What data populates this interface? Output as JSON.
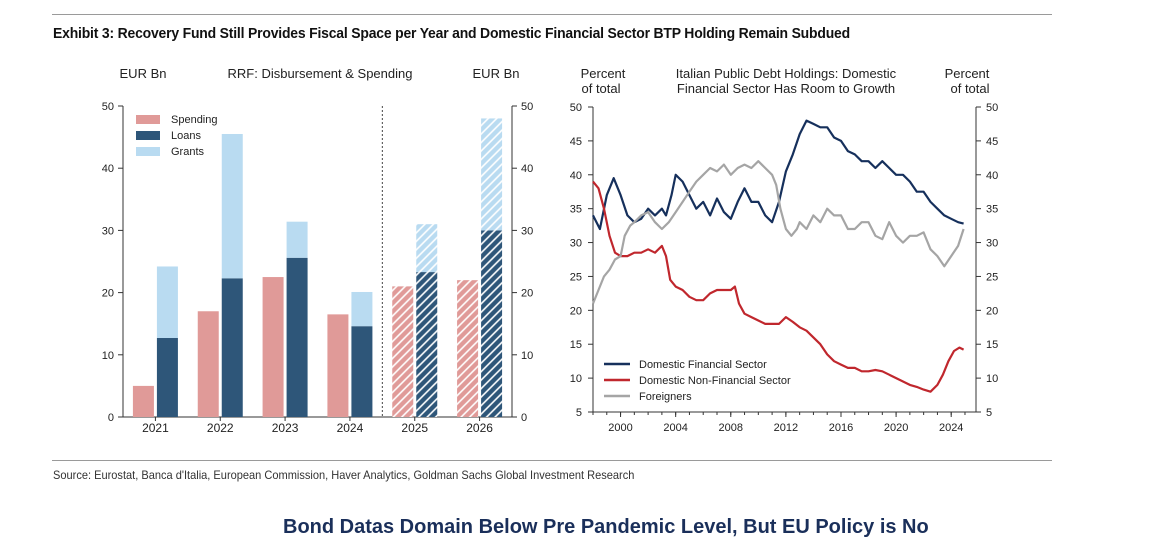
{
  "exhibit_title": "Exhibit 3: Recovery Fund Still Provides Fiscal Space per Year and Domestic Financial Sector BTP Holding Remain Subdued",
  "source": "Source: Eurostat, Banca d'Italia, European Commission, Haver Analytics, Goldman Sachs Global Investment Research",
  "footer_heading": "Bond Datas Domain Below Pre Pandemic Level, But EU Policy is No",
  "colors": {
    "spending": "#e09a98",
    "loans": "#2e5679",
    "grants": "#b9dbf1",
    "domestic_financial": "#16305c",
    "domestic_non_financial": "#c0272d",
    "foreigners": "#a5a5a5"
  },
  "chart_data": [
    {
      "type": "bar",
      "title": "RRF: Disbursement & Spending",
      "ylabel_left": "EUR Bn",
      "ylabel_right": "EUR Bn",
      "ylim": [
        0,
        50
      ],
      "yticks": [
        0,
        10,
        20,
        30,
        40,
        50
      ],
      "categories": [
        "2021",
        "2022",
        "2023",
        "2024",
        "2025",
        "2026"
      ],
      "projected_categories": [
        "2025",
        "2026"
      ],
      "legend": [
        "Spending",
        "Loans",
        "Grants"
      ],
      "series": [
        {
          "name": "Spending",
          "values": [
            5,
            17,
            22.5,
            16.5,
            21,
            22
          ]
        },
        {
          "name": "Loans",
          "values": [
            12.7,
            22.3,
            25.6,
            14.6,
            23.3,
            30
          ]
        },
        {
          "name": "Grants",
          "values": [
            11.5,
            23.2,
            5.8,
            5.5,
            7.7,
            18
          ]
        }
      ]
    },
    {
      "type": "line",
      "title_line1": "Italian Public Debt Holdings: Domestic",
      "title_line2": "Financial Sector Has Room to Growth",
      "ylabel_left_line1": "Percent",
      "ylabel_left_line2": "of total",
      "ylabel_right_line1": "Percent",
      "ylabel_right_line2": "of total",
      "ylim": [
        5,
        50
      ],
      "yticks": [
        5,
        10,
        15,
        20,
        25,
        30,
        35,
        40,
        45,
        50
      ],
      "xlim": [
        1998,
        2025.8
      ],
      "xticks": [
        2000,
        2004,
        2008,
        2012,
        2016,
        2020,
        2024
      ],
      "legend": [
        "Domestic Financial Sector",
        "Domestic Non-Financial Sector",
        "Foreigners"
      ],
      "series": [
        {
          "name": "Domestic Financial Sector",
          "points": [
            [
              1998,
              34
            ],
            [
              1998.5,
              32
            ],
            [
              1999,
              37
            ],
            [
              1999.5,
              39.5
            ],
            [
              2000,
              37
            ],
            [
              2000.5,
              34
            ],
            [
              2001,
              33
            ],
            [
              2001.5,
              33.5
            ],
            [
              2002,
              35
            ],
            [
              2002.5,
              34
            ],
            [
              2003,
              35
            ],
            [
              2003.3,
              34
            ],
            [
              2003.7,
              37
            ],
            [
              2004,
              40
            ],
            [
              2004.5,
              39
            ],
            [
              2005,
              37
            ],
            [
              2005.5,
              35
            ],
            [
              2006,
              36
            ],
            [
              2006.5,
              34
            ],
            [
              2007,
              36.5
            ],
            [
              2007.5,
              34.5
            ],
            [
              2008,
              33.5
            ],
            [
              2008.5,
              36
            ],
            [
              2009,
              38
            ],
            [
              2009.5,
              36
            ],
            [
              2010,
              36
            ],
            [
              2010.5,
              34
            ],
            [
              2011,
              33
            ],
            [
              2011.5,
              36
            ],
            [
              2012,
              40.5
            ],
            [
              2012.5,
              43
            ],
            [
              2013,
              46
            ],
            [
              2013.5,
              48
            ],
            [
              2014,
              47.5
            ],
            [
              2014.5,
              47
            ],
            [
              2015,
              47
            ],
            [
              2015.5,
              45.5
            ],
            [
              2016,
              45
            ],
            [
              2016.5,
              43.5
            ],
            [
              2017,
              43
            ],
            [
              2017.5,
              42
            ],
            [
              2018,
              42
            ],
            [
              2018.5,
              41
            ],
            [
              2019,
              42
            ],
            [
              2019.5,
              41
            ],
            [
              2020,
              40
            ],
            [
              2020.5,
              40
            ],
            [
              2021,
              39
            ],
            [
              2021.5,
              37.5
            ],
            [
              2022,
              37.5
            ],
            [
              2022.5,
              36
            ],
            [
              2023,
              35
            ],
            [
              2023.5,
              34
            ],
            [
              2024,
              33.5
            ],
            [
              2024.5,
              33
            ],
            [
              2024.9,
              32.8
            ]
          ]
        },
        {
          "name": "Domestic Non-Financial Sector",
          "points": [
            [
              1998,
              39
            ],
            [
              1998.4,
              38
            ],
            [
              1998.8,
              35
            ],
            [
              1999.2,
              31
            ],
            [
              1999.6,
              28.5
            ],
            [
              2000,
              28
            ],
            [
              2000.5,
              28
            ],
            [
              2001,
              28.5
            ],
            [
              2001.5,
              28.5
            ],
            [
              2002,
              29
            ],
            [
              2002.5,
              28.5
            ],
            [
              2003,
              29.5
            ],
            [
              2003.3,
              28
            ],
            [
              2003.6,
              24.5
            ],
            [
              2004,
              23.5
            ],
            [
              2004.5,
              23
            ],
            [
              2005,
              22
            ],
            [
              2005.5,
              21.5
            ],
            [
              2006,
              21.5
            ],
            [
              2006.5,
              22.5
            ],
            [
              2007,
              23
            ],
            [
              2007.5,
              23
            ],
            [
              2008,
              23
            ],
            [
              2008.3,
              23.5
            ],
            [
              2008.6,
              21
            ],
            [
              2009,
              19.5
            ],
            [
              2009.5,
              19
            ],
            [
              2010,
              18.5
            ],
            [
              2010.5,
              18
            ],
            [
              2011,
              18
            ],
            [
              2011.5,
              18
            ],
            [
              2012,
              19
            ],
            [
              2012.5,
              18.3
            ],
            [
              2013,
              17.5
            ],
            [
              2013.5,
              17
            ],
            [
              2014,
              16
            ],
            [
              2014.5,
              15
            ],
            [
              2015,
              13.5
            ],
            [
              2015.5,
              12.5
            ],
            [
              2016,
              12
            ],
            [
              2016.5,
              11.5
            ],
            [
              2017,
              11.5
            ],
            [
              2017.5,
              11
            ],
            [
              2018,
              11
            ],
            [
              2018.5,
              11.2
            ],
            [
              2019,
              11
            ],
            [
              2019.5,
              10.5
            ],
            [
              2020,
              10
            ],
            [
              2020.5,
              9.5
            ],
            [
              2021,
              9
            ],
            [
              2021.5,
              8.7
            ],
            [
              2022,
              8.3
            ],
            [
              2022.5,
              8
            ],
            [
              2023,
              9
            ],
            [
              2023.4,
              10.5
            ],
            [
              2023.8,
              12.5
            ],
            [
              2024.2,
              14
            ],
            [
              2024.6,
              14.5
            ],
            [
              2024.9,
              14.2
            ]
          ]
        },
        {
          "name": "Foreigners",
          "points": [
            [
              1998,
              21
            ],
            [
              1998.4,
              23
            ],
            [
              1998.8,
              25
            ],
            [
              1999.2,
              26
            ],
            [
              1999.6,
              27.5
            ],
            [
              2000,
              28
            ],
            [
              2000.3,
              31
            ],
            [
              2000.7,
              32.5
            ],
            [
              2001,
              33
            ],
            [
              2001.5,
              34
            ],
            [
              2002,
              34.5
            ],
            [
              2002.5,
              33
            ],
            [
              2003,
              32
            ],
            [
              2003.5,
              33
            ],
            [
              2004,
              34.5
            ],
            [
              2004.5,
              36
            ],
            [
              2005,
              37.5
            ],
            [
              2005.5,
              39
            ],
            [
              2006,
              40
            ],
            [
              2006.5,
              41
            ],
            [
              2007,
              40.5
            ],
            [
              2007.5,
              41.5
            ],
            [
              2008,
              40
            ],
            [
              2008.5,
              41
            ],
            [
              2009,
              41.5
            ],
            [
              2009.5,
              41
            ],
            [
              2010,
              42
            ],
            [
              2010.5,
              41
            ],
            [
              2011,
              40
            ],
            [
              2011.3,
              38.5
            ],
            [
              2011.6,
              35
            ],
            [
              2012,
              32
            ],
            [
              2012.4,
              31
            ],
            [
              2012.8,
              32
            ],
            [
              2013,
              33
            ],
            [
              2013.5,
              32
            ],
            [
              2014,
              34
            ],
            [
              2014.5,
              33
            ],
            [
              2015,
              35
            ],
            [
              2015.5,
              34
            ],
            [
              2016,
              34
            ],
            [
              2016.5,
              32
            ],
            [
              2017,
              32
            ],
            [
              2017.5,
              33
            ],
            [
              2018,
              33
            ],
            [
              2018.5,
              31
            ],
            [
              2019,
              30.5
            ],
            [
              2019.5,
              33
            ],
            [
              2020,
              31
            ],
            [
              2020.5,
              30
            ],
            [
              2021,
              31
            ],
            [
              2021.5,
              31
            ],
            [
              2022,
              31.5
            ],
            [
              2022.5,
              29
            ],
            [
              2023,
              28
            ],
            [
              2023.5,
              26.5
            ],
            [
              2024,
              28
            ],
            [
              2024.5,
              29.5
            ],
            [
              2024.9,
              32
            ]
          ]
        }
      ]
    }
  ]
}
